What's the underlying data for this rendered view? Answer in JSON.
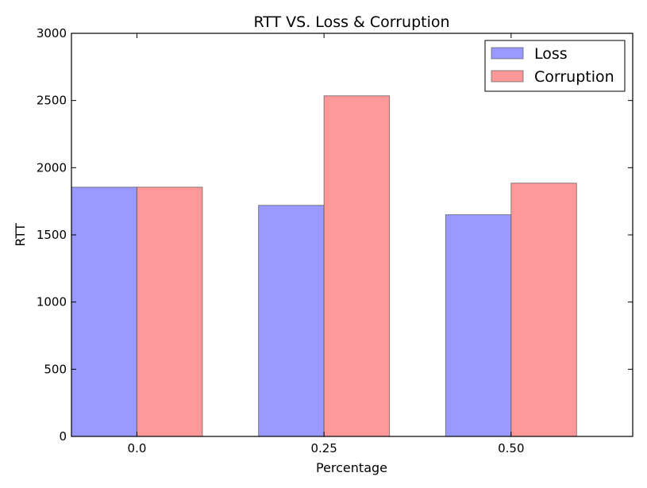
{
  "chart_data": {
    "type": "bar",
    "title": "RTT VS. Loss & Corruption",
    "xlabel": "Percentage",
    "ylabel": "RTT",
    "categories": [
      "0.0",
      "0.25",
      "0.50"
    ],
    "series": [
      {
        "name": "Loss",
        "color": "#9999ff",
        "values": [
          1855,
          1720,
          1650
        ]
      },
      {
        "name": "Corruption",
        "color": "#ff9999",
        "values": [
          1855,
          2535,
          1885
        ]
      }
    ],
    "ylim": [
      0,
      3000
    ],
    "yticks": [
      "0",
      "500",
      "1000",
      "1500",
      "2000",
      "2500",
      "3000"
    ],
    "grid": false,
    "legend": "top-right"
  }
}
